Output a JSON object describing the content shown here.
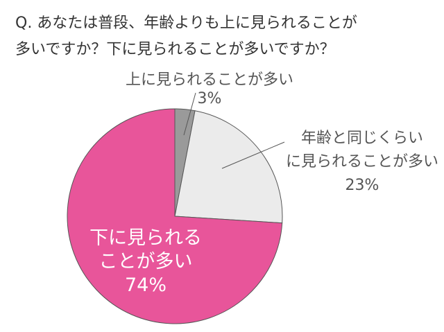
{
  "title_lines": [
    "Q. あなたは普段、年齢よりも上に見られることが",
    "多いですか？下に見られることが多いですか？"
  ],
  "chart_data": {
    "type": "pie",
    "title": "Q. あなたは普段、年齢よりも上に見られることが多いですか？下に見られることが多いですか？",
    "start": "12 o'clock",
    "direction": "clockwise",
    "slices": [
      {
        "label_lines": [
          "上に見られることが多い"
        ],
        "value": 3,
        "value_label": "3%",
        "color": "#9a9a9a"
      },
      {
        "label_lines": [
          "年齢と同じくらい",
          "に見られることが多い"
        ],
        "value": 23,
        "value_label": "23%",
        "color": "#ebebeb"
      },
      {
        "label_lines": [
          "下に見られる",
          "ことが多い"
        ],
        "value": 74,
        "value_label": "74%",
        "color": "#e8559a"
      }
    ],
    "slice_border_color": "#555555",
    "leader_line_color": "#555555"
  }
}
